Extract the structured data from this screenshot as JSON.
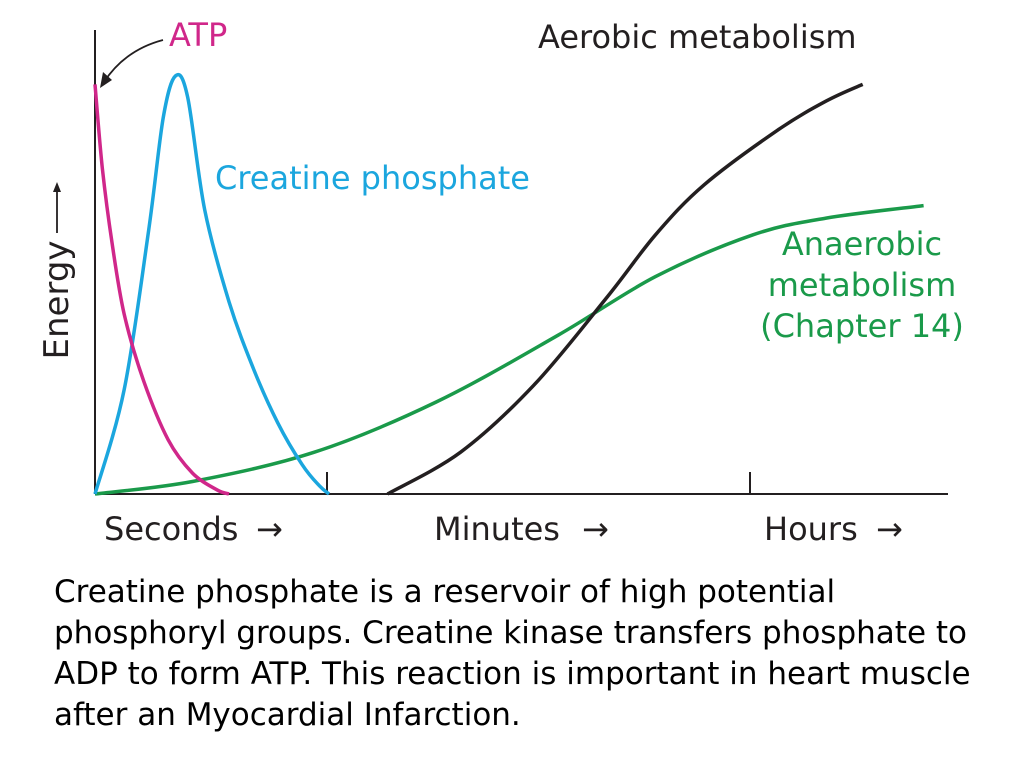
{
  "chart_data": {
    "type": "line",
    "title": "",
    "ylabel": "Energy",
    "xlabel": "",
    "x_segments": [
      {
        "label": "Seconds"
      },
      {
        "label": "Minutes"
      },
      {
        "label": "Hours"
      }
    ],
    "arrow_glyph": "→",
    "series": [
      {
        "name": "ATP",
        "color": "#d0278a",
        "points": [
          [
            0.0,
            0.98
          ],
          [
            0.03,
            0.78
          ],
          [
            0.07,
            0.6
          ],
          [
            0.12,
            0.43
          ],
          [
            0.2,
            0.27
          ],
          [
            0.3,
            0.13
          ],
          [
            0.4,
            0.05
          ],
          [
            0.5,
            0.01
          ],
          [
            0.55,
            0.0
          ]
        ]
      },
      {
        "name": "Creatine phosphate",
        "color": "#1ba6de",
        "points": [
          [
            0.0,
            0.0
          ],
          [
            0.12,
            0.25
          ],
          [
            0.22,
            0.63
          ],
          [
            0.28,
            0.9
          ],
          [
            0.33,
            1.0
          ],
          [
            0.38,
            0.95
          ],
          [
            0.45,
            0.68
          ],
          [
            0.55,
            0.46
          ],
          [
            0.65,
            0.3
          ],
          [
            0.75,
            0.17
          ],
          [
            0.85,
            0.07
          ],
          [
            0.92,
            0.02
          ],
          [
            0.96,
            0.0
          ]
        ]
      },
      {
        "name": "Aerobic metabolism",
        "color": "#231f20",
        "points": [
          [
            1.2,
            0.0
          ],
          [
            1.5,
            0.1
          ],
          [
            1.8,
            0.26
          ],
          [
            2.1,
            0.47
          ],
          [
            2.3,
            0.62
          ],
          [
            2.5,
            0.74
          ],
          [
            2.8,
            0.87
          ],
          [
            3.0,
            0.94
          ],
          [
            3.15,
            0.98
          ]
        ]
      },
      {
        "name": "Anaerobic metabolism (Chapter 14)",
        "color": "#1a9a4a",
        "points": [
          [
            0.0,
            0.0
          ],
          [
            0.4,
            0.03
          ],
          [
            0.9,
            0.1
          ],
          [
            1.4,
            0.22
          ],
          [
            1.9,
            0.38
          ],
          [
            2.3,
            0.52
          ],
          [
            2.7,
            0.62
          ],
          [
            3.0,
            0.66
          ],
          [
            3.4,
            0.69
          ]
        ]
      }
    ],
    "series_labels": {
      "atp": "ATP",
      "creatine": "Creatine phosphate",
      "aerobic": "Aerobic metabolism",
      "anaerobic": [
        "Anaerobic",
        "metabolism",
        "(Chapter 14)"
      ]
    },
    "xlim": [
      0,
      3.5
    ],
    "ylim": [
      0,
      1
    ],
    "grid": false,
    "legend": "none"
  },
  "caption": "Creatine phosphate is a reservoir of high potential phosphoryl groups.  Creatine kinase transfers phosphate to ADP to form ATP.  This reaction is important in heart muscle after an Myocardial Infarction."
}
